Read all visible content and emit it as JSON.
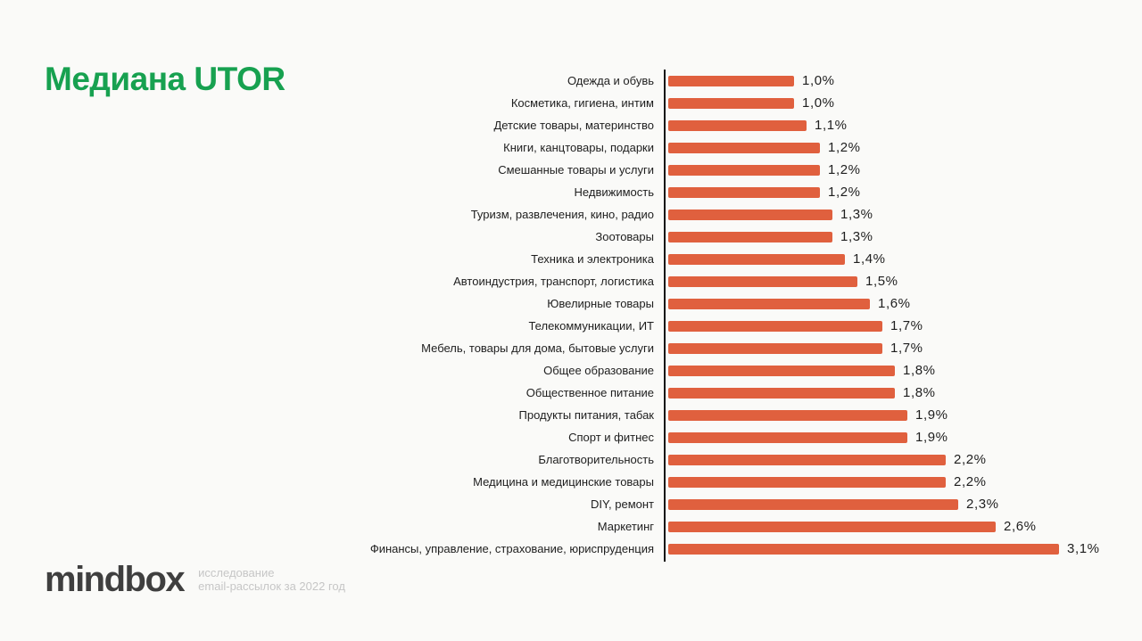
{
  "page": {
    "background_color": "#FAFAF8"
  },
  "title": {
    "text": "Медиана UTOR",
    "color": "#17A150"
  },
  "chart_data": {
    "type": "bar",
    "orientation": "horizontal",
    "title": "Медиана UTOR",
    "xlabel": "",
    "ylabel": "",
    "unit": "%",
    "xlim": [
      0,
      3.3
    ],
    "grid": false,
    "legend": false,
    "bar_color": "#E0603E",
    "axis_color": "#141414",
    "categories": [
      "Одежда и обувь",
      "Косметика, гигиена, интим",
      "Детские товары, материнство",
      "Книги, канцтовары, подарки",
      "Смешанные товары и услуги",
      "Недвижимость",
      "Туризм, развлечения, кино, радио",
      "Зоотовары",
      "Техника и электроника",
      "Автоиндустрия, транспорт, логистика",
      "Ювелирные товары",
      "Телекоммуникации, ИТ",
      "Мебель, товары для дома, бытовые услуги",
      "Общее образование",
      "Общественное питание",
      "Продукты питания, табак",
      "Спорт и фитнес",
      "Благотворительность",
      "Медицина и медицинские товары",
      "DIY, ремонт",
      "Маркетинг",
      "Финансы, управление, страхование, юриспруденция"
    ],
    "values": [
      1.0,
      1.0,
      1.1,
      1.2,
      1.2,
      1.2,
      1.3,
      1.3,
      1.4,
      1.5,
      1.6,
      1.7,
      1.7,
      1.8,
      1.8,
      1.9,
      1.9,
      2.2,
      2.2,
      2.3,
      2.6,
      3.1
    ],
    "value_labels": [
      "1,0%",
      "1,0%",
      "1,1%",
      "1,2%",
      "1,2%",
      "1,2%",
      "1,3%",
      "1,3%",
      "1,4%",
      "1,5%",
      "1,6%",
      "1,7%",
      "1,7%",
      "1,8%",
      "1,8%",
      "1,9%",
      "1,9%",
      "2,2%",
      "2,2%",
      "2,3%",
      "2,6%",
      "3,1%"
    ]
  },
  "footer": {
    "logo": "mindbox",
    "caption_line1": "исследование",
    "caption_line2": "email-рассылок за 2022 год"
  }
}
